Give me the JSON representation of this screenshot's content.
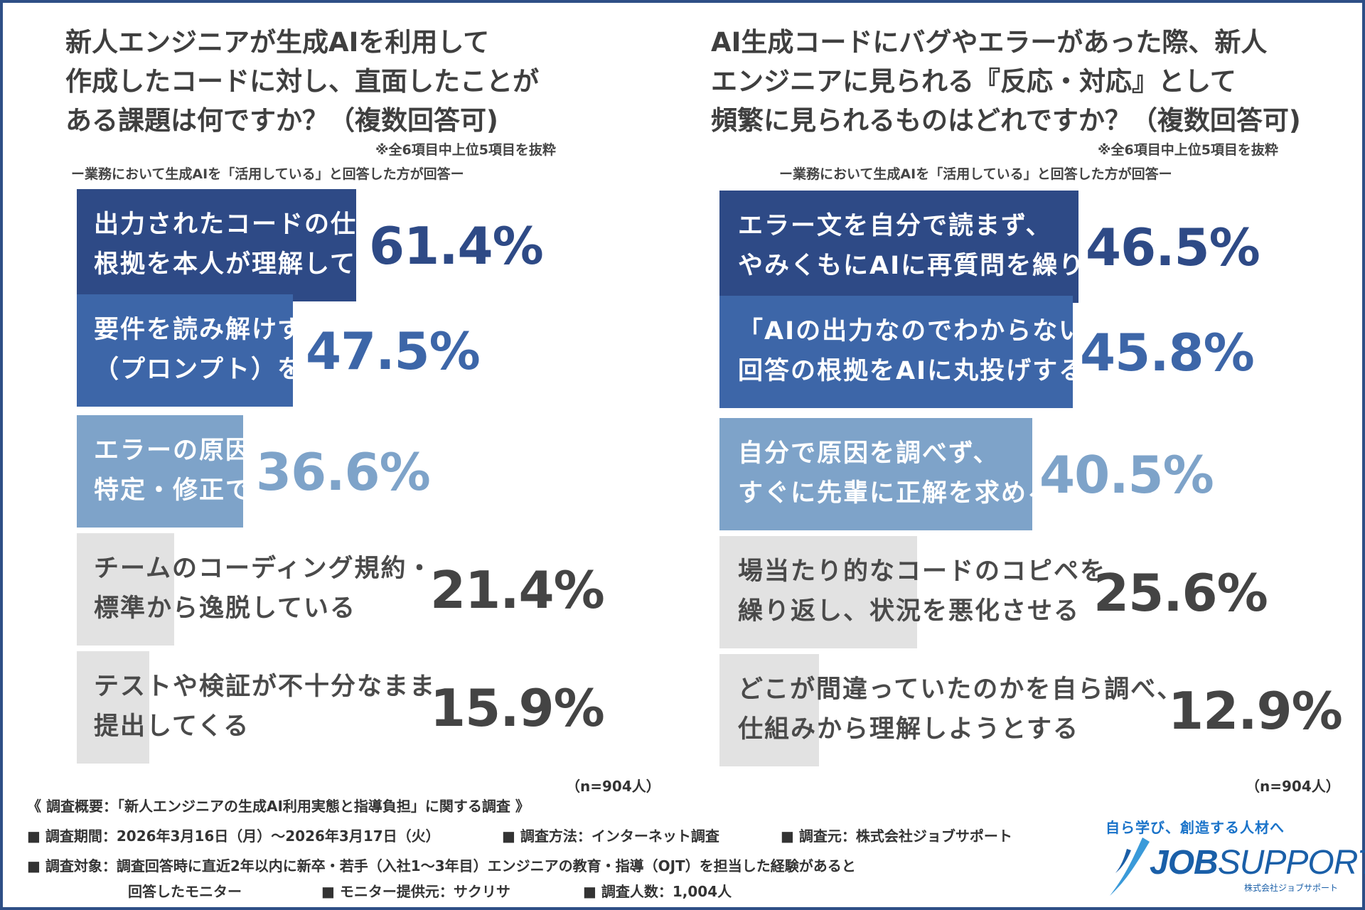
{
  "colors": {
    "bar_dark": "#2e4a86",
    "bar_mid": "#3d66a8",
    "bar_light": "#7ea3c9",
    "bar_gray": "#e2e2e2",
    "border": "#2e4f86",
    "value_gray": "#444444",
    "label_light": "#ffffff",
    "label_dark": "#4a4a4a"
  },
  "left": {
    "title_lines": [
      "新人エンジニアが生成AIを利用して",
      "作成したコードに対し、直面したことが",
      "ある課題は何ですか？（複数回答可)"
    ],
    "note": "※全6項目中上位5項目を抜粋",
    "subtitle": "ー業務において生成AIを「活用している」と回答した方が回答ー",
    "n": "（n=904人）"
  },
  "right": {
    "title_lines": [
      "AI生成コードにバグやエラーがあった際、新人",
      "エンジニアに見られる『反応・対応』として",
      "頻繁に見られるものはどれですか？（複数回答可)"
    ],
    "note": "※全6項目中上位5項目を抜粋",
    "subtitle": "ー業務において生成AIを「活用している」と回答した方が回答ー",
    "n": "（n=904人）"
  },
  "chart_data": [
    {
      "type": "bar",
      "orientation": "horizontal",
      "unit": "%",
      "categories": [
        [
          "出力されたコードの仕組みや",
          "根拠を本人が理解していない"
        ],
        [
          "要件を読み解けず、曖昧な指示",
          "（プロンプト）を出している"
        ],
        [
          "エラーの原因を自力で",
          "特定・修正できない"
        ],
        [
          "チームのコーディング規約・",
          "標準から逸脱している"
        ],
        [
          "テストや検証が不十分なまま",
          "提出してくる"
        ]
      ],
      "values": [
        61.4,
        47.5,
        36.6,
        21.4,
        15.9
      ],
      "value_labels": [
        "61.4%",
        "47.5%",
        "36.6%",
        "21.4%",
        "15.9%"
      ],
      "bar_colors": [
        "#2e4a86",
        "#3d66a8",
        "#7ea3c9",
        "#e2e2e2",
        "#e2e2e2"
      ],
      "value_colors": [
        "#2e4a86",
        "#3d66a8",
        "#7ea3c9",
        "#444444",
        "#444444"
      ],
      "label_colors": [
        "#ffffff",
        "#ffffff",
        "#ffffff",
        "#4a4a4a",
        "#4a4a4a"
      ],
      "xlim": [
        0,
        100
      ],
      "grid": false
    },
    {
      "type": "bar",
      "orientation": "horizontal",
      "unit": "%",
      "categories": [
        [
          "エラー文を自分で読まず、",
          "やみくもにAIに再質問を繰り返す"
        ],
        [
          "「AIの出力なのでわからない」と",
          "回答の根拠をAIに丸投げする"
        ],
        [
          "自分で原因を調べず、",
          "すぐに先輩に正解を求める"
        ],
        [
          "場当たり的なコードのコピペを",
          "繰り返し、状況を悪化させる"
        ],
        [
          "どこが間違っていたのかを自ら調べ、",
          "仕組みから理解しようとする"
        ]
      ],
      "values": [
        46.5,
        45.8,
        40.5,
        25.6,
        12.9
      ],
      "value_labels": [
        "46.5%",
        "45.8%",
        "40.5%",
        "25.6%",
        "12.9%"
      ],
      "bar_colors": [
        "#2e4a86",
        "#3d66a8",
        "#7ea3c9",
        "#e2e2e2",
        "#e2e2e2"
      ],
      "value_colors": [
        "#2e4a86",
        "#3d66a8",
        "#7ea3c9",
        "#444444",
        "#444444"
      ],
      "label_colors": [
        "#ffffff",
        "#ffffff",
        "#ffffff",
        "#4a4a4a",
        "#4a4a4a"
      ],
      "xlim": [
        0,
        70
      ],
      "grid": false
    }
  ],
  "survey": {
    "heading": "《 調査概要：「新人エンジニアの生成AI利用実態と指導負担」に関する調査 》",
    "period": "■ 調査期間：2026年3月16日（月）～2026年3月17日（火）",
    "method": "■ 調査方法：インターネット調査",
    "source": "■ 調査元：株式会社ジョブサポート",
    "target_1": "■ 調査対象：調査回答時に直近2年以内に新卒・若手（入社1～3年目）エンジニアの教育・指導（OJT）を担当した経験があると",
    "target_2": "回答したモニター",
    "provider": "■ モニター提供元：サクリサ",
    "count": "■ 調査人数：1,004人"
  },
  "logo": {
    "tagline": "自ら学び、創造する人材へ",
    "name_bold": "JOB",
    "name_light": "SUPPORT",
    "company": "株式会社ジョブサポート",
    "icon": "swoosh-icon"
  }
}
